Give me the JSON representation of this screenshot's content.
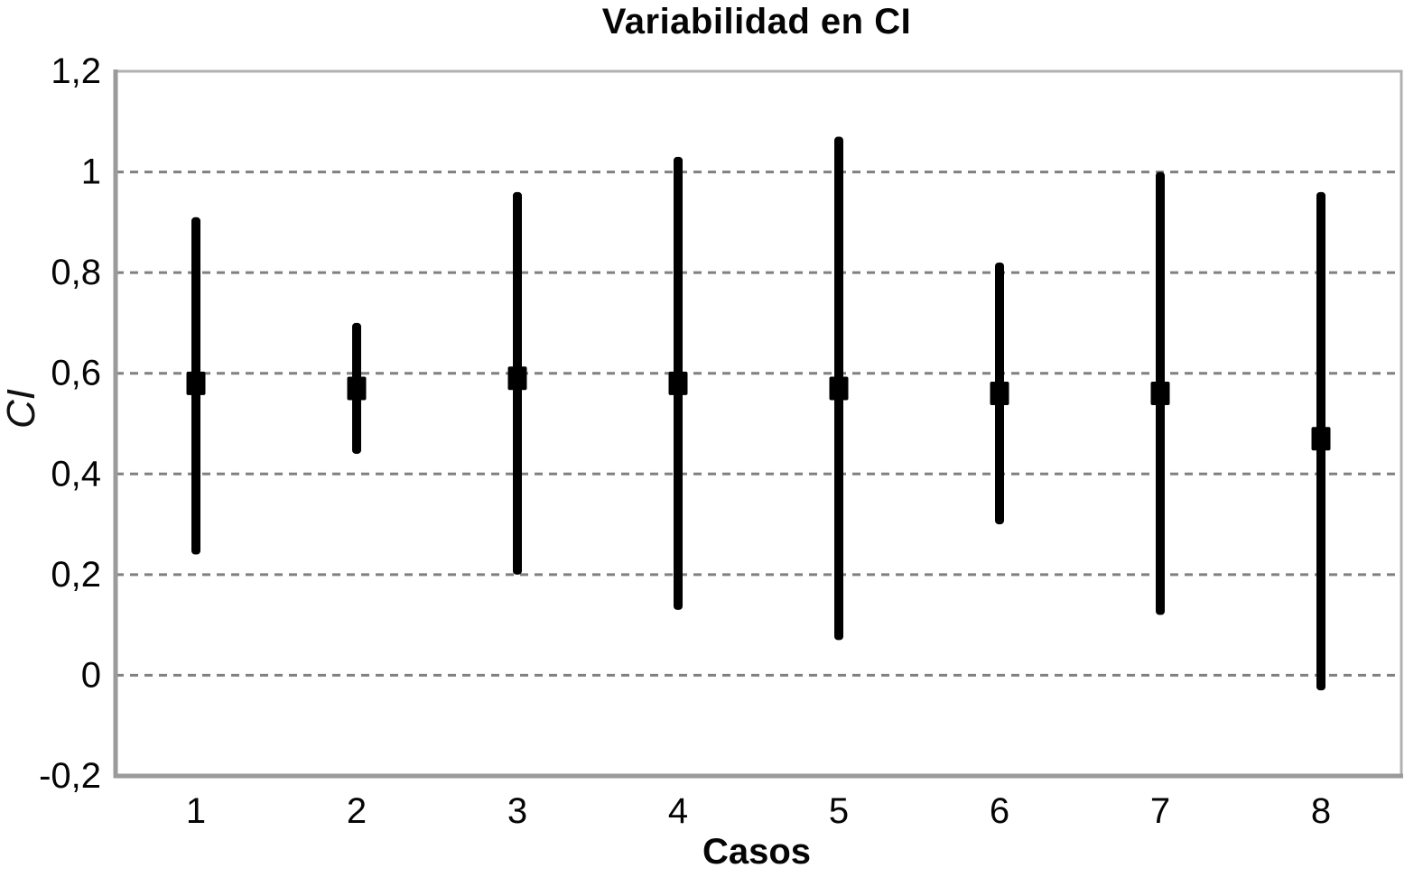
{
  "title": "Variabilidad en CI",
  "axes": {
    "x_label": "Casos",
    "y_label": "CI"
  },
  "colors": {
    "background": "#ffffff",
    "bar": "#000000",
    "marker": "#000000",
    "gridline": "#808080",
    "axis_border": "#b0b0b0",
    "axis_main": "#9a9a9a",
    "text": "#050505"
  },
  "chart_data": {
    "type": "scatter",
    "subtype": "error-bar-vertical",
    "title": "Variabilidad en CI",
    "xlabel": "Casos",
    "ylabel": "CI",
    "categories": [
      "1",
      "2",
      "3",
      "4",
      "5",
      "6",
      "7",
      "8"
    ],
    "series": [
      {
        "name": "CI",
        "points": [
          {
            "caso": "1",
            "ci": 0.58,
            "low": 0.24,
            "high": 0.91
          },
          {
            "caso": "2",
            "ci": 0.57,
            "low": 0.44,
            "high": 0.7
          },
          {
            "caso": "3",
            "ci": 0.59,
            "low": 0.2,
            "high": 0.96
          },
          {
            "caso": "4",
            "ci": 0.58,
            "low": 0.13,
            "high": 1.03
          },
          {
            "caso": "5",
            "ci": 0.57,
            "low": 0.07,
            "high": 1.07
          },
          {
            "caso": "6",
            "ci": 0.56,
            "low": 0.3,
            "high": 0.82
          },
          {
            "caso": "7",
            "ci": 0.56,
            "low": 0.12,
            "high": 1.0
          },
          {
            "caso": "8",
            "ci": 0.47,
            "low": -0.03,
            "high": 0.96
          }
        ]
      }
    ],
    "ylim": [
      -0.2,
      1.2
    ],
    "yticks": {
      "values": [
        1.2,
        1.0,
        0.8,
        0.6,
        0.4,
        0.2,
        0.0,
        -0.2
      ],
      "labels": [
        "1,2",
        "1",
        "0,8",
        "0,6",
        "0,4",
        "0,2",
        "0",
        "-0,2"
      ]
    },
    "grid": "horizontal-dashed",
    "legend_position": "none"
  }
}
